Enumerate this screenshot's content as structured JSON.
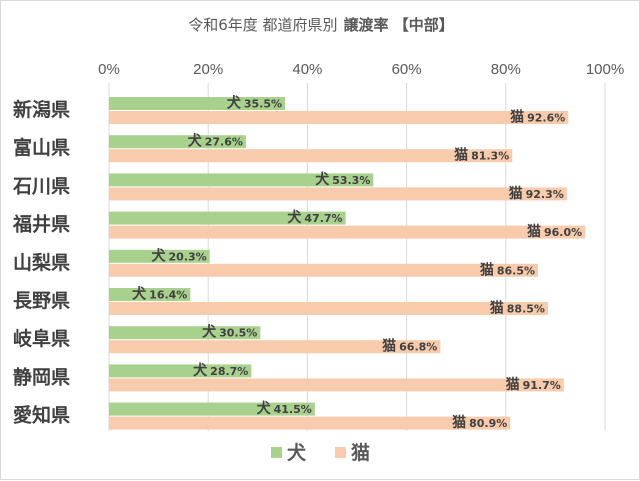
{
  "chart_data": {
    "type": "bar",
    "orientation": "horizontal",
    "title": "令和6年度 都道府県別 譲渡率 【中部】",
    "title_parts": {
      "lead": "令和6年度 都道府県別",
      "emphasis": "譲渡率 【中部】"
    },
    "categories": [
      "新潟県",
      "富山県",
      "石川県",
      "福井県",
      "山梨県",
      "長野県",
      "岐阜県",
      "静岡県",
      "愛知県"
    ],
    "series": [
      {
        "name": "犬",
        "color": "#a9d18e",
        "values": [
          35.5,
          27.6,
          53.3,
          47.7,
          20.3,
          16.4,
          30.5,
          28.7,
          41.5
        ]
      },
      {
        "name": "猫",
        "color": "#f8cbad",
        "values": [
          92.6,
          81.3,
          92.3,
          96.0,
          86.5,
          88.5,
          66.8,
          91.7,
          80.9
        ]
      }
    ],
    "x_ticks": [
      "0%",
      "20%",
      "40%",
      "60%",
      "80%",
      "100%"
    ],
    "xlim": [
      0,
      100
    ],
    "gridlines": true,
    "axis_position": "top",
    "legend_position": "bottom",
    "grid_color": "#d9d9d9"
  }
}
